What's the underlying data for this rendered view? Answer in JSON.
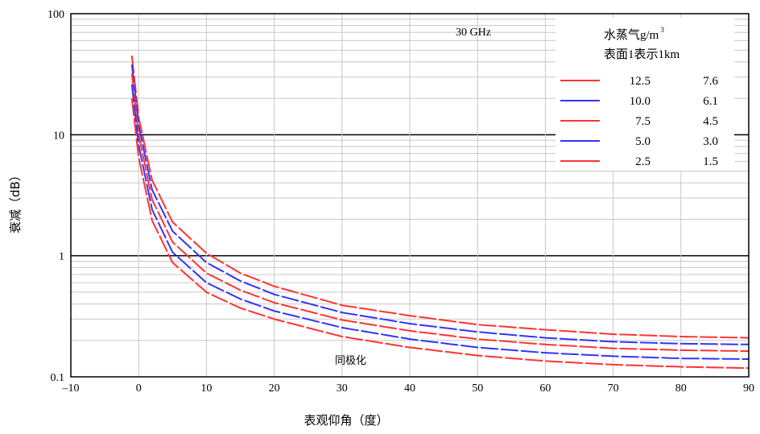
{
  "chart_data": {
    "type": "line",
    "xlabel": "表观仰角（度）",
    "ylabel": "衰减（dB）",
    "frequency_label": "30 GHz",
    "annotation": "同极化",
    "xlim": [
      -10,
      90
    ],
    "ylim": [
      0.1,
      100
    ],
    "y_scale": "log",
    "x_ticks": [
      "–10",
      "0",
      "10",
      "20",
      "30",
      "40",
      "50",
      "60",
      "70",
      "80",
      "90"
    ],
    "y_ticks": [
      "0.1",
      "1",
      "10",
      "100"
    ],
    "legend": {
      "title_line1": "水蒸气g/m",
      "title_superscript": "3",
      "title_line2": "表面1表示1km",
      "entries": [
        {
          "label_a": "12.5",
          "label_b": "7.6",
          "color": "#ff3333"
        },
        {
          "label_a": "10.0",
          "label_b": "6.1",
          "color": "#3333ff"
        },
        {
          "label_a": "7.5",
          "label_b": "4.5",
          "color": "#ff3333"
        },
        {
          "label_a": "5.0",
          "label_b": "3.0",
          "color": "#3333ff"
        },
        {
          "label_a": "2.5",
          "label_b": "1.5",
          "color": "#ff3333"
        }
      ]
    },
    "series": [
      {
        "color": "#ff3333",
        "x": [
          -1,
          0,
          2,
          5,
          10,
          15,
          20,
          30,
          40,
          50,
          60,
          70,
          80,
          90
        ],
        "y": [
          45,
          14,
          4.2,
          1.9,
          1.05,
          0.72,
          0.56,
          0.39,
          0.32,
          0.27,
          0.245,
          0.225,
          0.215,
          0.21
        ]
      },
      {
        "color": "#3333ff",
        "x": [
          -1,
          0,
          2,
          5,
          10,
          15,
          20,
          30,
          40,
          50,
          60,
          70,
          80,
          90
        ],
        "y": [
          38,
          12,
          3.5,
          1.6,
          0.88,
          0.62,
          0.48,
          0.34,
          0.275,
          0.235,
          0.21,
          0.195,
          0.188,
          0.185
        ]
      },
      {
        "color": "#ff3333",
        "x": [
          -1,
          0,
          2,
          5,
          10,
          15,
          20,
          30,
          40,
          50,
          60,
          70,
          80,
          90
        ],
        "y": [
          32,
          10,
          2.9,
          1.3,
          0.72,
          0.52,
          0.41,
          0.295,
          0.24,
          0.205,
          0.185,
          0.172,
          0.166,
          0.163
        ]
      },
      {
        "color": "#3333ff",
        "x": [
          -1,
          0,
          2,
          5,
          10,
          15,
          20,
          30,
          40,
          50,
          60,
          70,
          80,
          90
        ],
        "y": [
          26,
          8.2,
          2.4,
          1.07,
          0.6,
          0.44,
          0.35,
          0.255,
          0.205,
          0.175,
          0.158,
          0.148,
          0.142,
          0.14
        ]
      },
      {
        "color": "#ff3333",
        "x": [
          -1,
          0,
          2,
          5,
          10,
          15,
          20,
          30,
          40,
          50,
          60,
          70,
          80,
          90
        ],
        "y": [
          20,
          6.5,
          1.95,
          0.88,
          0.5,
          0.37,
          0.3,
          0.215,
          0.175,
          0.15,
          0.135,
          0.126,
          0.121,
          0.118
        ]
      }
    ]
  }
}
